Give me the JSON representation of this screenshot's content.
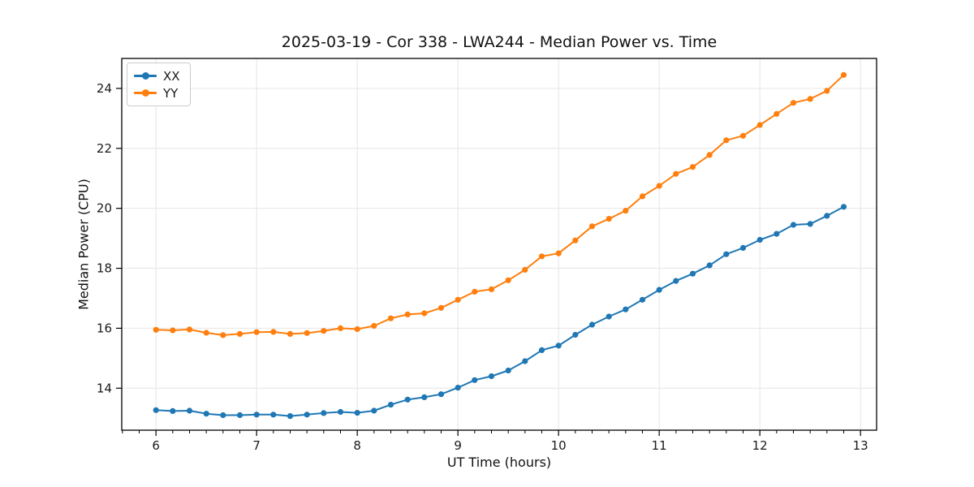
{
  "title": "2025-03-19 - Cor 338 - LWA244 - Median Power vs. Time",
  "colors": {
    "series_xx": "#1f77b4",
    "series_yy": "#ff7f0e",
    "grid": "#e6e6e6",
    "spine": "#000000",
    "text": "#1a1a1a",
    "legend_border": "#cccccc",
    "background": "#ffffff"
  },
  "chart_data": {
    "type": "line",
    "title": "2025-03-19 - Cor 338 - LWA244 - Median Power vs. Time",
    "xlabel": "UT Time (hours)",
    "ylabel": "Median Power (CPU)",
    "xlim": [
      5.66,
      13.16
    ],
    "ylim": [
      12.6,
      25.0
    ],
    "x_ticks": [
      6,
      7,
      8,
      9,
      10,
      11,
      12,
      13
    ],
    "y_ticks": [
      14,
      16,
      18,
      20,
      22,
      24
    ],
    "x_minor_tick_interval_hours": 0.1667,
    "grid": true,
    "legend_position": "upper left",
    "marker": "circle",
    "x": [
      6.0,
      6.1667,
      6.3333,
      6.5,
      6.6667,
      6.8333,
      7.0,
      7.1667,
      7.3333,
      7.5,
      7.6667,
      7.8333,
      8.0,
      8.1667,
      8.3333,
      8.5,
      8.6667,
      8.8333,
      9.0,
      9.1667,
      9.3333,
      9.5,
      9.6667,
      9.8333,
      10.0,
      10.1667,
      10.3333,
      10.5,
      10.6667,
      10.8333,
      11.0,
      11.1667,
      11.3333,
      11.5,
      11.6667,
      11.8333,
      12.0,
      12.1667,
      12.3333,
      12.5,
      12.6667,
      12.8333
    ],
    "series": [
      {
        "name": "XX",
        "color": "#1f77b4",
        "values": [
          13.27,
          13.24,
          13.25,
          13.15,
          13.1,
          13.1,
          13.12,
          13.12,
          13.07,
          13.12,
          13.17,
          13.21,
          13.18,
          13.25,
          13.45,
          13.62,
          13.7,
          13.8,
          14.02,
          14.27,
          14.4,
          14.59,
          14.9,
          15.27,
          15.42,
          15.78,
          16.12,
          16.39,
          16.63,
          16.95,
          17.28,
          17.58,
          17.82,
          18.1,
          18.47,
          18.68,
          18.95,
          19.15,
          19.45,
          19.48,
          19.75,
          20.05
        ]
      },
      {
        "name": "YY",
        "color": "#ff7f0e",
        "values": [
          15.95,
          15.93,
          15.96,
          15.85,
          15.77,
          15.81,
          15.87,
          15.88,
          15.81,
          15.84,
          15.91,
          16.0,
          15.97,
          16.08,
          16.33,
          16.46,
          16.5,
          16.68,
          16.95,
          17.22,
          17.3,
          17.6,
          17.95,
          18.4,
          18.5,
          18.93,
          19.4,
          19.65,
          19.92,
          20.4,
          20.75,
          21.15,
          21.38,
          21.78,
          22.27,
          22.42,
          22.78,
          23.15,
          23.52,
          23.65,
          23.92,
          24.45
        ]
      }
    ]
  }
}
